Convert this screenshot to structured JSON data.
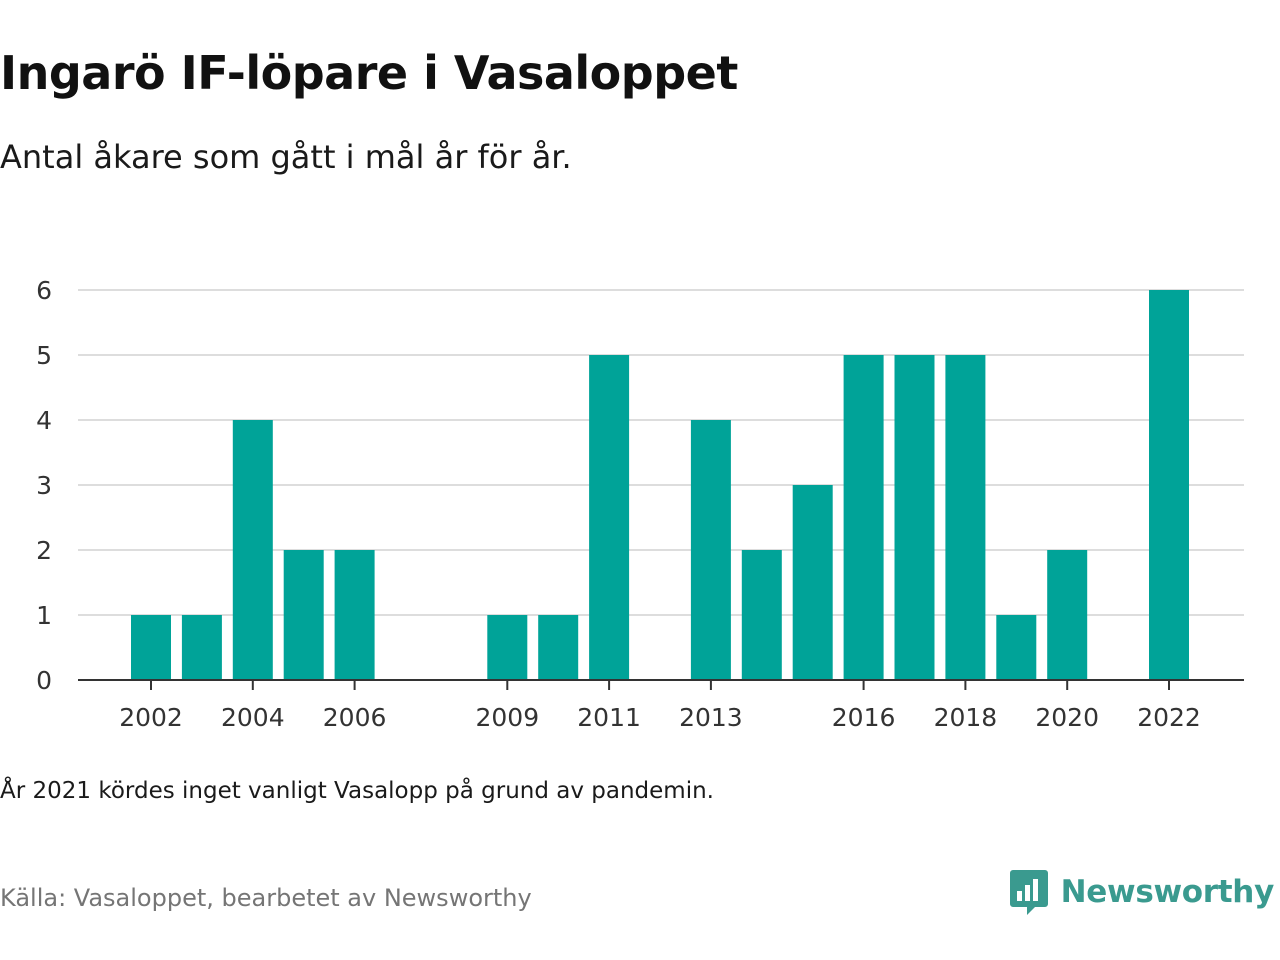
{
  "title": "Ingarö IF-löpare i Vasaloppet",
  "subtitle": "Antal åkare som gått i mål år för år.",
  "note": "År 2021 kördes inget vanligt Vasalopp på grund av pandemin.",
  "source": "Källa: Vasaloppet, bearbetet av Newsworthy",
  "brand": {
    "name": "Newsworthy",
    "icon": "newsworthy-logo-icon",
    "color": "#3a9a8f"
  },
  "chart_data": {
    "type": "bar",
    "title": "Ingarö IF-löpare i Vasaloppet",
    "subtitle": "Antal åkare som gått i mål år för år.",
    "xlabel": "",
    "ylabel": "",
    "x": [
      2002,
      2003,
      2004,
      2005,
      2006,
      2007,
      2008,
      2009,
      2010,
      2011,
      2012,
      2013,
      2014,
      2015,
      2016,
      2017,
      2018,
      2019,
      2020,
      2021,
      2022
    ],
    "values": [
      1,
      1,
      4,
      2,
      2,
      0,
      0,
      1,
      1,
      5,
      0,
      4,
      2,
      3,
      5,
      5,
      5,
      1,
      2,
      0,
      6
    ],
    "x_tick_labels": [
      "2002",
      "2004",
      "2006",
      "2009",
      "2011",
      "2013",
      "2016",
      "2018",
      "2020",
      "2022"
    ],
    "y_tick_labels": [
      "0",
      "1",
      "2",
      "3",
      "4",
      "5",
      "6"
    ],
    "ylim": [
      0,
      6
    ],
    "grid": true,
    "bar_color": "#00a398",
    "grid_color": "#dddddd"
  }
}
